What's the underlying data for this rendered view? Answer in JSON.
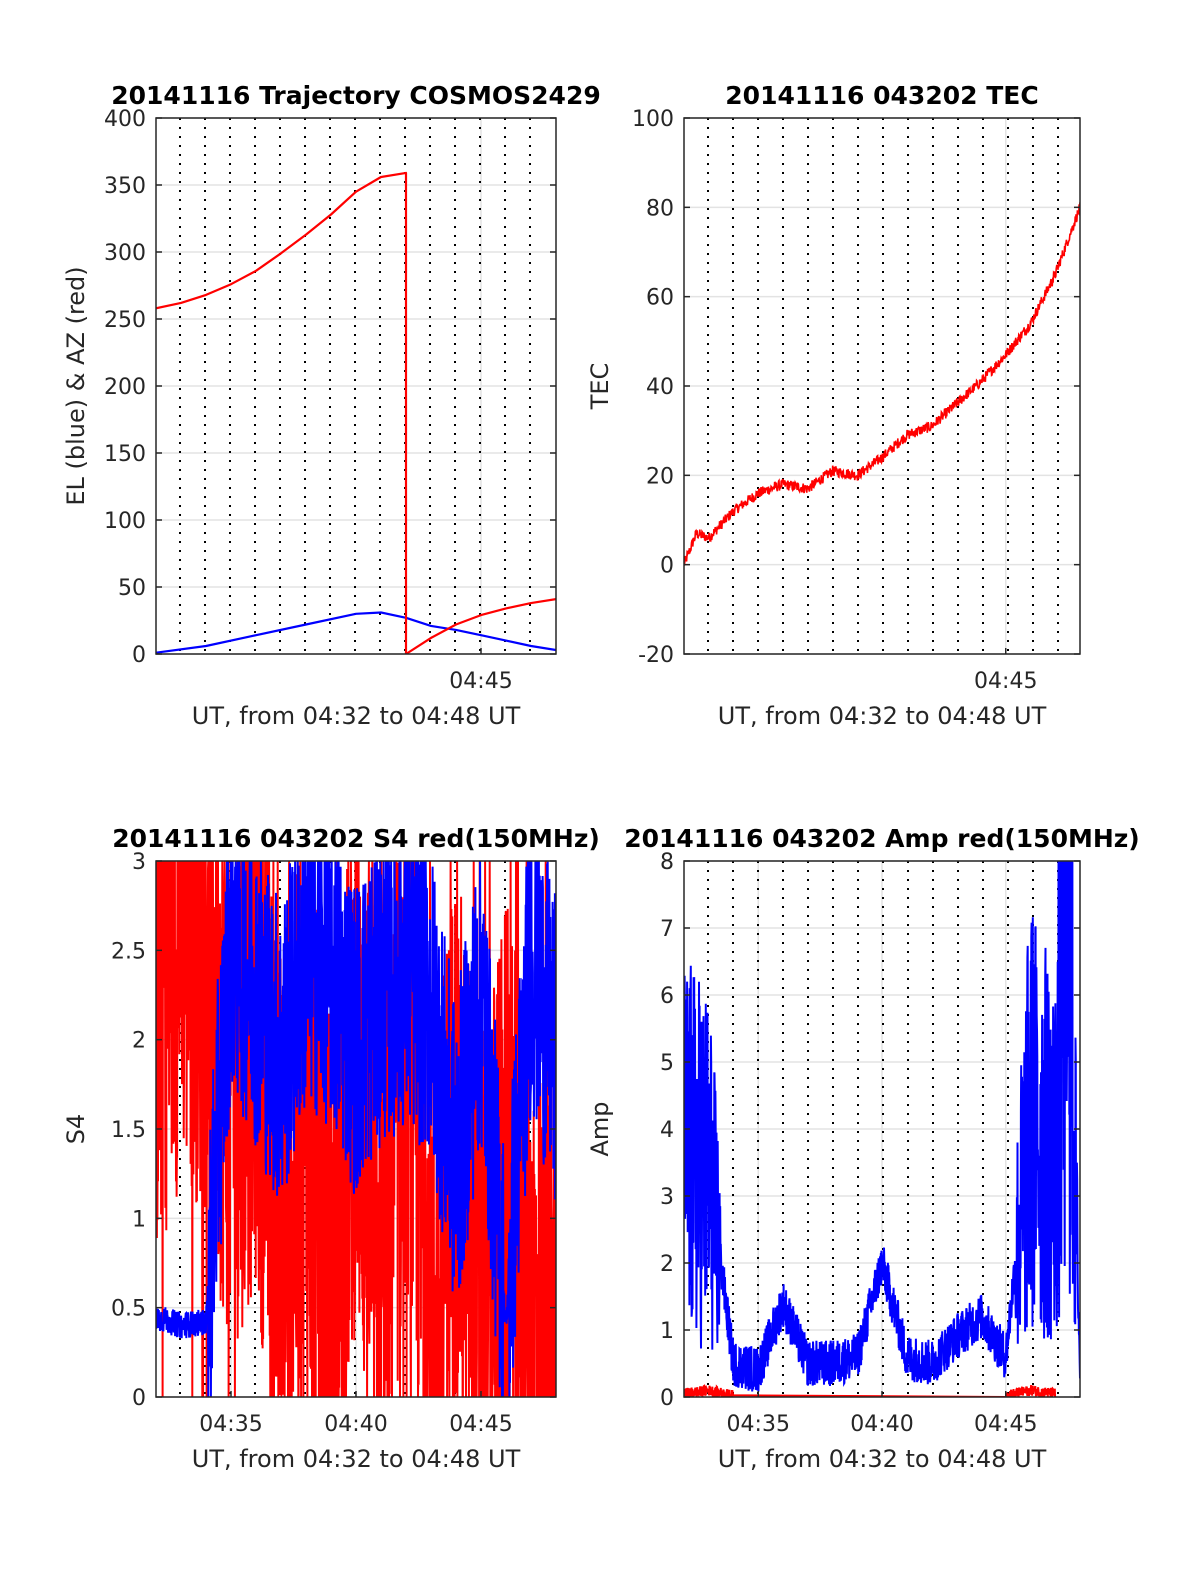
{
  "figure": {
    "panels": [
      {
        "title": "20141116 Trajectory COSMOS2429",
        "ylabel": "EL (blue) & AZ (red)",
        "xlabel": "UT, from 04:32 to 04:48 UT"
      },
      {
        "title": "20141116 043202 TEC",
        "ylabel": "TEC",
        "xlabel": "UT, from 04:32 to 04:48 UT"
      },
      {
        "title": "20141116 043202 S4 red(150MHz)",
        "ylabel": "S4",
        "xlabel": "UT, from 04:32 to 04:48 UT"
      },
      {
        "title": "20141116 043202 Amp red(150MHz)",
        "ylabel": "Amp",
        "xlabel": "UT, from 04:32 to 04:48 UT"
      }
    ]
  },
  "chart_data": [
    {
      "type": "line",
      "title": "20141116 Trajectory COSMOS2429",
      "xlabel": "UT, from 04:32 to 04:48 UT",
      "ylabel": "EL (blue) & AZ (red)",
      "xlim": [
        "04:32",
        "04:48"
      ],
      "ylim": [
        0,
        400
      ],
      "yticks": [
        0,
        50,
        100,
        150,
        200,
        250,
        300,
        350,
        400
      ],
      "xticks": [
        "04:45"
      ],
      "grid": true,
      "colors": {
        "el": "#0000ff",
        "az": "#ff0000"
      },
      "series": [
        {
          "x": [
            "04:32",
            "04:34",
            "04:36",
            "04:38",
            "04:40",
            "04:41",
            "04:42",
            "04:43",
            "04:44",
            "04:45",
            "04:46",
            "04:47",
            "04:48"
          ],
          "values": [
            1,
            6,
            14,
            22,
            30,
            31,
            27,
            21,
            18,
            14,
            10,
            6,
            3
          ]
        },
        {
          "x": [
            "04:32",
            "04:33",
            "04:34",
            "04:35",
            "04:36",
            "04:37",
            "04:38",
            "04:39",
            "04:40",
            "04:41",
            "04:42",
            "04:42",
            "04:43",
            "04:44",
            "04:45",
            "04:46",
            "04:47",
            "04:48"
          ],
          "values": [
            258,
            262,
            268,
            276,
            286,
            299,
            313,
            328,
            345,
            356,
            359,
            0,
            12,
            22,
            29,
            34,
            38,
            41
          ]
        }
      ]
    },
    {
      "type": "line",
      "title": "20141116 043202 TEC",
      "xlabel": "UT, from 04:32 to 04:48 UT",
      "ylabel": "TEC",
      "xlim": [
        "04:32",
        "04:48"
      ],
      "ylim": [
        -20,
        100
      ],
      "yticks": [
        -20,
        0,
        20,
        40,
        60,
        80,
        100
      ],
      "xticks": [
        "04:45"
      ],
      "grid": true,
      "colors": {
        "line": "#ff0000"
      },
      "series": [
        {
          "x": [
            "04:32",
            "04:32.5",
            "04:33",
            "04:34",
            "04:35",
            "04:36",
            "04:37",
            "04:38",
            "04:39",
            "04:40",
            "04:41",
            "04:42",
            "04:43",
            "04:44",
            "04:45",
            "04:46",
            "04:47",
            "04:48"
          ],
          "values": [
            0,
            7,
            6,
            12,
            16,
            18,
            17,
            21,
            20,
            24,
            29,
            31,
            36,
            41,
            47,
            54,
            65,
            80
          ]
        }
      ]
    },
    {
      "type": "line",
      "title": "20141116 043202 S4 red(150MHz)",
      "xlabel": "UT, from 04:32 to 04:48 UT",
      "ylabel": "S4",
      "xlim": [
        "04:32",
        "04:48"
      ],
      "ylim": [
        0,
        3
      ],
      "yticks": [
        0,
        0.5,
        1,
        1.5,
        2,
        2.5,
        3
      ],
      "xticks": [
        "04:35",
        "04:40",
        "04:45"
      ],
      "grid": true,
      "colors": {
        "red": "#ff0000",
        "blue": "#0000ff"
      },
      "series": [
        {
          "x": [
            "04:32",
            "04:33",
            "04:34",
            "04:35",
            "04:36",
            "04:37",
            "04:38",
            "04:39",
            "04:40",
            "04:41",
            "04:42",
            "04:43",
            "04:44",
            "04:45",
            "04:46",
            "04:47",
            "04:48"
          ],
          "values": [
            2.3,
            2.8,
            2.6,
            1.8,
            2.2,
            0.9,
            1.6,
            0.6,
            2.0,
            0.5,
            2.2,
            0.4,
            1.5,
            0.4,
            1.2,
            0.4,
            0.6
          ]
        },
        {
          "x": [
            "04:32",
            "04:33",
            "04:34",
            "04:35",
            "04:36",
            "04:37",
            "04:38",
            "04:39",
            "04:40",
            "04:41",
            "04:42",
            "04:43",
            "04:44",
            "04:45",
            "04:46",
            "04:47",
            "04:48"
          ],
          "values": [
            0.45,
            0.4,
            0.42,
            2.6,
            2.3,
            1.9,
            2.5,
            2.4,
            2.0,
            2.3,
            2.4,
            2.2,
            1.3,
            2.3,
            0.4,
            2.5,
            1.9
          ]
        }
      ]
    },
    {
      "type": "line",
      "title": "20141116 043202 Amp red(150MHz)",
      "xlabel": "UT, from 04:32 to 04:48 UT",
      "ylabel": "Amp",
      "xlim": [
        "04:32",
        "04:48"
      ],
      "ylim": [
        0,
        8
      ],
      "yticks": [
        0,
        1,
        2,
        3,
        4,
        5,
        6,
        7,
        8
      ],
      "xticks": [
        "04:35",
        "04:40",
        "04:45"
      ],
      "grid": true,
      "colors": {
        "red": "#ff0000",
        "blue": "#0000ff"
      },
      "series": [
        {
          "x": [
            "04:32",
            "04:33",
            "04:34",
            "04:45",
            "04:46",
            "04:47",
            "04:48"
          ],
          "values": [
            0.05,
            0.1,
            0.02,
            0.02,
            0.1,
            0.05,
            0.02
          ]
        },
        {
          "x": [
            "04:32",
            "04:33",
            "04:34",
            "04:35",
            "04:36",
            "04:37",
            "04:38",
            "04:39",
            "04:40",
            "04:41",
            "04:42",
            "04:43",
            "04:44",
            "04:45",
            "04:46",
            "04:47",
            "04:47.5",
            "04:48"
          ],
          "values": [
            3.7,
            3.4,
            0.5,
            0.4,
            1.4,
            0.5,
            0.5,
            0.6,
            2.0,
            0.6,
            0.5,
            0.9,
            1.2,
            0.6,
            4.2,
            3.5,
            7.8,
            0.4
          ]
        }
      ]
    }
  ]
}
